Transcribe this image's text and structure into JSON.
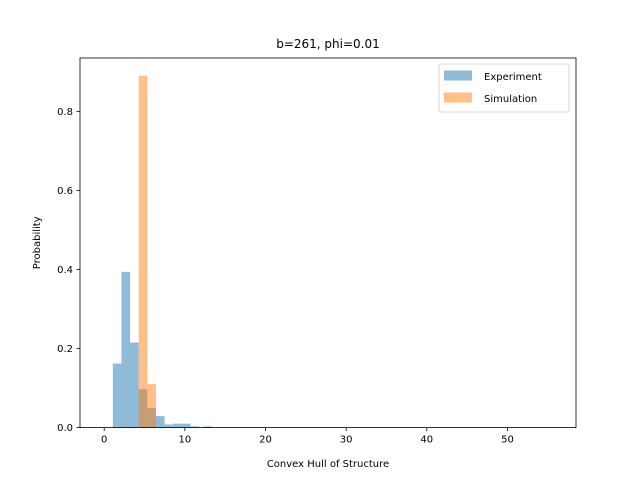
{
  "chart_data": {
    "type": "bar",
    "title": "b=261, phi=0.01",
    "xlabel": "Convex Hull of Structure",
    "ylabel": "Probability",
    "xlim": [
      -3.0,
      58.5
    ],
    "ylim": [
      0,
      0.935
    ],
    "xticks": [
      0,
      10,
      20,
      30,
      40,
      50
    ],
    "yticks": [
      0.0,
      0.2,
      0.4,
      0.6,
      0.8
    ],
    "ytick_labels": [
      "0.0",
      "0.2",
      "0.4",
      "0.6",
      "0.8"
    ],
    "legend_position": "top-right",
    "grid": false,
    "series": [
      {
        "name": "Experiment",
        "color": "#1f77b4",
        "alpha": 0.5,
        "bin_width": 1.07,
        "bins": [
          {
            "x": 1.07,
            "y": 0.162
          },
          {
            "x": 2.14,
            "y": 0.394
          },
          {
            "x": 3.21,
            "y": 0.215
          },
          {
            "x": 4.28,
            "y": 0.097
          },
          {
            "x": 5.35,
            "y": 0.049
          },
          {
            "x": 6.42,
            "y": 0.029
          },
          {
            "x": 7.49,
            "y": 0.008
          },
          {
            "x": 8.56,
            "y": 0.01
          },
          {
            "x": 9.63,
            "y": 0.01
          },
          {
            "x": 10.7,
            "y": 0.003
          },
          {
            "x": 12.3,
            "y": 0.003
          }
        ]
      },
      {
        "name": "Simulation",
        "color": "#ff7f0e",
        "alpha": 0.5,
        "bin_width": 1.07,
        "bins": [
          {
            "x": 4.28,
            "y": 0.89
          },
          {
            "x": 5.35,
            "y": 0.11
          }
        ]
      }
    ]
  }
}
